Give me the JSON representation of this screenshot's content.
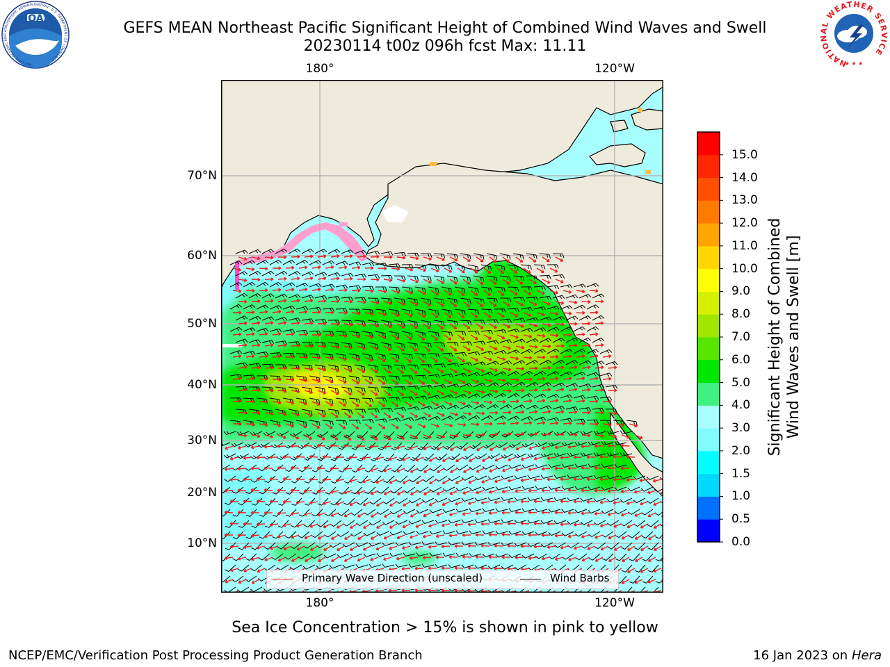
{
  "title": {
    "line1": "GEFS MEAN Northeast Pacific Significant Height of Combined Wind Waves and Swell",
    "line2": "20230114 t00z 096h fcst   Max: 11.11"
  },
  "logos": {
    "left": {
      "name": "noaa-logo",
      "text": "NOAA",
      "ring_text": "NATIONAL OCEANIC AND ATMOSPHERIC ADMINISTRATION · U.S. DEPARTMENT OF COMMERCE"
    },
    "right": {
      "name": "national-weather-service-logo",
      "ring_text": "NATIONAL WEATHER SERVICE"
    }
  },
  "map": {
    "lon_labels_top": [
      "180°",
      "120°W"
    ],
    "lon_labels_bottom": [
      "180°",
      "120°W"
    ],
    "lat_labels": [
      "70°N",
      "60°N",
      "50°N",
      "40°N",
      "30°N",
      "20°N",
      "10°N"
    ],
    "colors": {
      "land": "#efebdc",
      "ice": "#ff9fd0",
      "wave_arrow": "#e8201c",
      "barb": "#000000"
    }
  },
  "colorbar": {
    "label": "Significant Height of Combined Wind Waves and Swell [m]",
    "label_line1": "Significant Height of Combined",
    "label_line2": "Wind Waves and Swell [m]",
    "ticks": [
      "0.0",
      "0.5",
      "1.0",
      "1.5",
      "2.0",
      "3.0",
      "4.0",
      "5.0",
      "6.0",
      "7.0",
      "8.0",
      "9.0",
      "10.0",
      "11.0",
      "12.0",
      "13.0",
      "14.0",
      "15.0"
    ],
    "colors": [
      "#0000ff",
      "#0070ff",
      "#00d8ff",
      "#00ffff",
      "#80fcfc",
      "#a8ffff",
      "#40f080",
      "#00e600",
      "#58e600",
      "#a0e600",
      "#d4f000",
      "#ffff00",
      "#ffd500",
      "#ffa500",
      "#ff7b00",
      "#ff5000",
      "#ff2800",
      "#ff0000"
    ]
  },
  "legend": {
    "wave_direction": "Primary Wave Direction (unscaled)",
    "wind_barbs": "Wind Barbs"
  },
  "sea_ice_note": "Sea Ice Concentration > 15% is shown in pink to yellow",
  "footer": {
    "left": "NCEP/EMC/Verification Post Processing Product Generation Branch",
    "right_prefix": "16 Jan 2023 on ",
    "right_machine": "Hera"
  }
}
